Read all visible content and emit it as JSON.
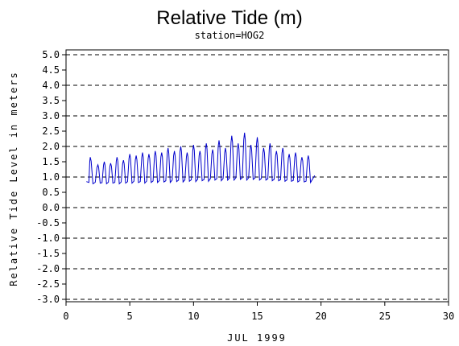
{
  "chart_data": {
    "type": "line",
    "title": "Relative Tide (m)",
    "subtitle": "station=HOG2",
    "xlabel": "JUL 1999",
    "ylabel": "Relative Tide Level in meters",
    "xlim": [
      0,
      30
    ],
    "ylim": [
      -3.0,
      5.0
    ],
    "x_ticks": [
      "0",
      "5",
      "10",
      "15",
      "20",
      "25",
      "30"
    ],
    "y_ticks": [
      "5.0",
      "4.5",
      "4.0",
      "3.5",
      "3.0",
      "2.5",
      "2.0",
      "1.5",
      "1.0",
      "0.5",
      "0.0",
      "-0.5",
      "-1.0",
      "-1.5",
      "-2.0",
      "-2.5",
      "-3.0"
    ],
    "grid": "dashed horizontal at integer levels",
    "line_color": "#0000cc",
    "series": [
      {
        "tidal_cycles": [
          {
            "t": 1.9,
            "high": 1.65,
            "low": 0.78
          },
          {
            "t": 2.5,
            "high": 1.4,
            "low": 0.8
          },
          {
            "t": 3.0,
            "high": 1.5,
            "low": 0.78
          },
          {
            "t": 3.5,
            "high": 1.45,
            "low": 0.8
          },
          {
            "t": 4.0,
            "high": 1.65,
            "low": 0.78
          },
          {
            "t": 4.5,
            "high": 1.55,
            "low": 0.8
          },
          {
            "t": 5.0,
            "high": 1.75,
            "low": 0.8
          },
          {
            "t": 5.5,
            "high": 1.7,
            "low": 0.82
          },
          {
            "t": 6.0,
            "high": 1.8,
            "low": 0.8
          },
          {
            "t": 6.5,
            "high": 1.75,
            "low": 0.82
          },
          {
            "t": 7.0,
            "high": 1.85,
            "low": 0.82
          },
          {
            "t": 7.5,
            "high": 1.8,
            "low": 0.84
          },
          {
            "t": 8.0,
            "high": 1.95,
            "low": 0.82
          },
          {
            "t": 8.5,
            "high": 1.85,
            "low": 0.85
          },
          {
            "t": 9.0,
            "high": 2.0,
            "low": 0.84
          },
          {
            "t": 9.5,
            "high": 1.8,
            "low": 0.86
          },
          {
            "t": 10.0,
            "high": 2.05,
            "low": 0.85
          },
          {
            "t": 10.5,
            "high": 1.85,
            "low": 0.88
          },
          {
            "t": 11.0,
            "high": 2.1,
            "low": 0.86
          },
          {
            "t": 11.5,
            "high": 1.9,
            "low": 0.9
          },
          {
            "t": 12.0,
            "high": 2.2,
            "low": 0.88
          },
          {
            "t": 12.5,
            "high": 1.95,
            "low": 0.9
          },
          {
            "t": 13.0,
            "high": 2.35,
            "low": 0.9
          },
          {
            "t": 13.5,
            "high": 2.1,
            "low": 0.92
          },
          {
            "t": 14.0,
            "high": 2.45,
            "low": 0.9
          },
          {
            "t": 14.5,
            "high": 2.05,
            "low": 0.92
          },
          {
            "t": 15.0,
            "high": 2.3,
            "low": 0.9
          },
          {
            "t": 15.5,
            "high": 1.95,
            "low": 0.9
          },
          {
            "t": 16.0,
            "high": 2.1,
            "low": 0.88
          },
          {
            "t": 16.5,
            "high": 1.85,
            "low": 0.88
          },
          {
            "t": 17.0,
            "high": 1.95,
            "low": 0.86
          },
          {
            "t": 17.5,
            "high": 1.75,
            "low": 0.86
          },
          {
            "t": 18.0,
            "high": 1.8,
            "low": 0.84
          },
          {
            "t": 18.5,
            "high": 1.65,
            "low": 0.84
          },
          {
            "t": 19.0,
            "high": 1.7,
            "low": 0.82
          }
        ],
        "start": {
          "t": 1.6,
          "value": 0.85
        },
        "end": {
          "t": 19.5,
          "value": 1.05
        }
      }
    ]
  }
}
